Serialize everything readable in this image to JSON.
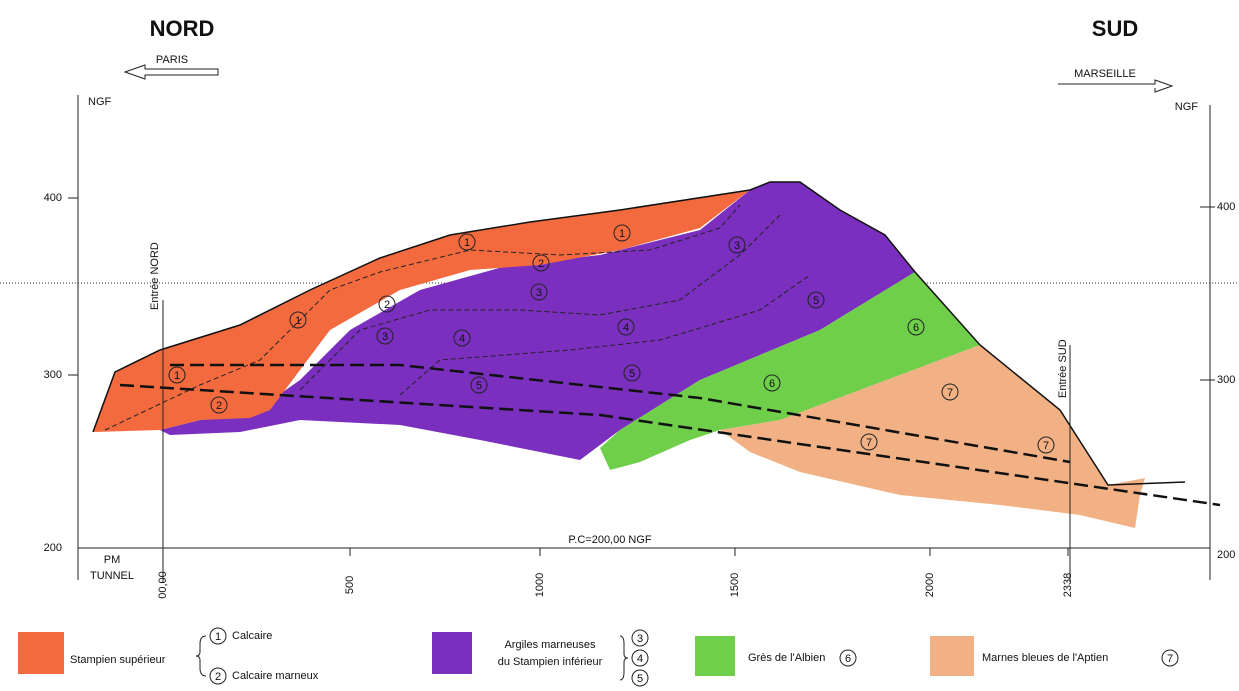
{
  "header": {
    "north": "NORD",
    "south": "SUD",
    "left_direction": "PARIS",
    "right_direction": "MARSEILLE"
  },
  "axes": {
    "left_unit": "NGF",
    "right_unit": "NGF",
    "left_ticks": [
      "400",
      "300",
      "200"
    ],
    "right_ticks": [
      "400",
      "300",
      "200"
    ],
    "reference": "P.C=200,00 NGF",
    "pm_label": [
      "PM",
      "TUNNEL"
    ],
    "chainage": [
      "00,00",
      "500",
      "1000",
      "1500",
      "2000",
      "2338"
    ],
    "north_entrance": "Entrée NORD",
    "south_entrance": "Entrée SUD"
  },
  "layer_labels": [
    "1",
    "1",
    "1",
    "1",
    "2",
    "2",
    "2",
    "3",
    "3",
    "3",
    "4",
    "4",
    "5",
    "5",
    "5",
    "6",
    "6",
    "7",
    "7",
    "7"
  ],
  "legend": {
    "stampien_sup": {
      "name": "Stampien supérieur",
      "units": [
        {
          "number": "1",
          "label": "Calcaire"
        },
        {
          "number": "2",
          "label": "Calcaire marneux"
        }
      ]
    },
    "stampien_inf": {
      "name": [
        "Argiles marneuses",
        "du Stampien inférieur"
      ],
      "units": [
        "3",
        "4",
        "5"
      ]
    },
    "albien": {
      "name": "Grès de l'Albien",
      "units": [
        "6"
      ]
    },
    "aptien": {
      "name": "Marnes bleues de l'Aptien",
      "units": [
        "7"
      ]
    }
  }
}
